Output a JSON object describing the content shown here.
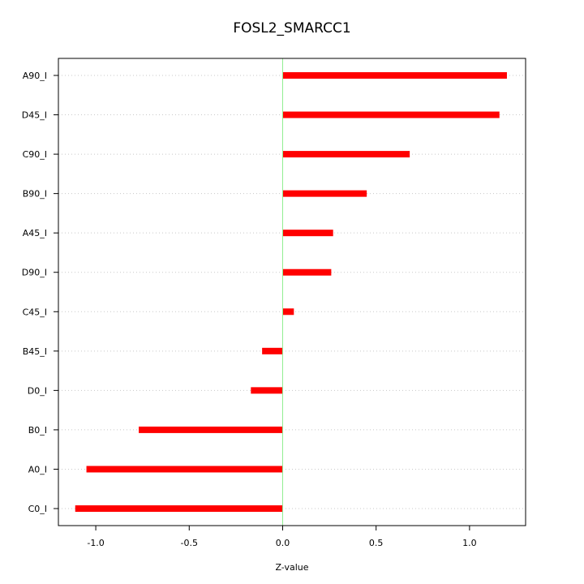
{
  "chart_data": {
    "type": "bar",
    "orientation": "horizontal",
    "title": "FOSL2_SMARCC1",
    "xlabel": "Z-value",
    "ylabel": "",
    "categories": [
      "A90_I",
      "D45_I",
      "C90_I",
      "B90_I",
      "A45_I",
      "D90_I",
      "C45_I",
      "B45_I",
      "D0_I",
      "B0_I",
      "A0_I",
      "C0_I"
    ],
    "values": [
      1.2,
      1.16,
      0.68,
      0.45,
      0.27,
      0.26,
      0.06,
      -0.11,
      -0.17,
      -0.77,
      -1.05,
      -1.11
    ],
    "xlim": [
      -1.2,
      1.3
    ],
    "xticks": [
      -1.0,
      -0.5,
      0.0,
      0.5,
      1.0
    ],
    "xtick_labels": [
      "-1.0",
      "-0.5",
      "0.0",
      "0.5",
      "1.0"
    ],
    "reference_line": 0.0,
    "grid": "horizontal dotted",
    "colors": {
      "bar": "#ff0000",
      "zero_line": "#90ee90",
      "grid": "#c8c8c8",
      "frame": "#000000"
    }
  }
}
